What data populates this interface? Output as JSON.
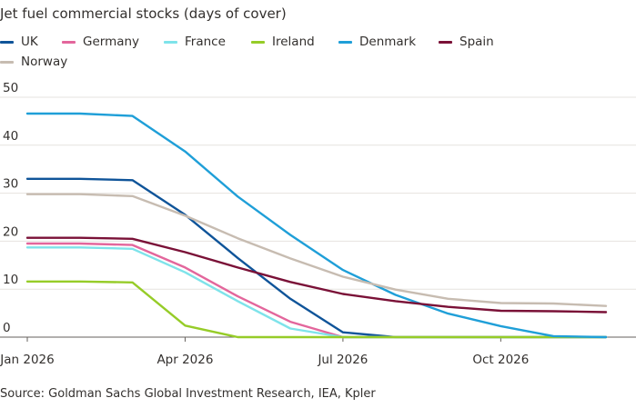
{
  "chart_data": {
    "type": "line",
    "title": "Jet fuel commercial stocks (days of cover)",
    "source": "Source: Goldman Sachs Global Investment Research, IEA, Kpler",
    "x": [
      "Jan 2026",
      "Feb 2026",
      "Mar 2026",
      "Apr 2026",
      "May 2026",
      "Jun 2026",
      "Jul 2026",
      "Aug 2026",
      "Sep 2026",
      "Oct 2026",
      "Nov 2026",
      "Dec 2026"
    ],
    "x_tick_labels": [
      "Jan 2026",
      "Apr 2026",
      "Jul 2026",
      "Oct 2026"
    ],
    "x_tick_indices": [
      0,
      3,
      6,
      9
    ],
    "y_ticks": [
      0,
      10,
      20,
      30,
      40,
      50
    ],
    "ylim": [
      0,
      50
    ],
    "grid": "horizontal",
    "legend_position": "top-left",
    "series": [
      {
        "name": "UK",
        "color": "#0f5499",
        "values": [
          33,
          33,
          32.7,
          25.5,
          16.5,
          8,
          1,
          0,
          0,
          0,
          0,
          0
        ]
      },
      {
        "name": "Germany",
        "color": "#e3669c",
        "values": [
          19.5,
          19.5,
          19.2,
          14.5,
          8.5,
          3.2,
          0,
          0,
          0,
          0,
          0,
          0
        ]
      },
      {
        "name": "France",
        "color": "#7ee3ea",
        "values": [
          18.7,
          18.7,
          18.4,
          13.5,
          7.5,
          1.8,
          0,
          0,
          0,
          0,
          0,
          0
        ]
      },
      {
        "name": "Ireland",
        "color": "#96cc28",
        "values": [
          11.6,
          11.6,
          11.4,
          2.4,
          0,
          0,
          0,
          0,
          0,
          0,
          0,
          0
        ]
      },
      {
        "name": "Denmark",
        "color": "#1f9fd8",
        "values": [
          46.6,
          46.6,
          46.1,
          38.7,
          29.3,
          21.3,
          14,
          8.8,
          4.9,
          2.3,
          0.2,
          0
        ]
      },
      {
        "name": "Spain",
        "color": "#7a1137",
        "values": [
          20.7,
          20.7,
          20.5,
          17.7,
          14.5,
          11.5,
          9,
          7.5,
          6.3,
          5.5,
          5.4,
          5.2
        ]
      },
      {
        "name": "Norway",
        "color": "#c7bcb1",
        "values": [
          29.8,
          29.8,
          29.4,
          25.3,
          20.6,
          16.4,
          12.6,
          9.9,
          8,
          7.1,
          7,
          6.5
        ]
      }
    ]
  }
}
